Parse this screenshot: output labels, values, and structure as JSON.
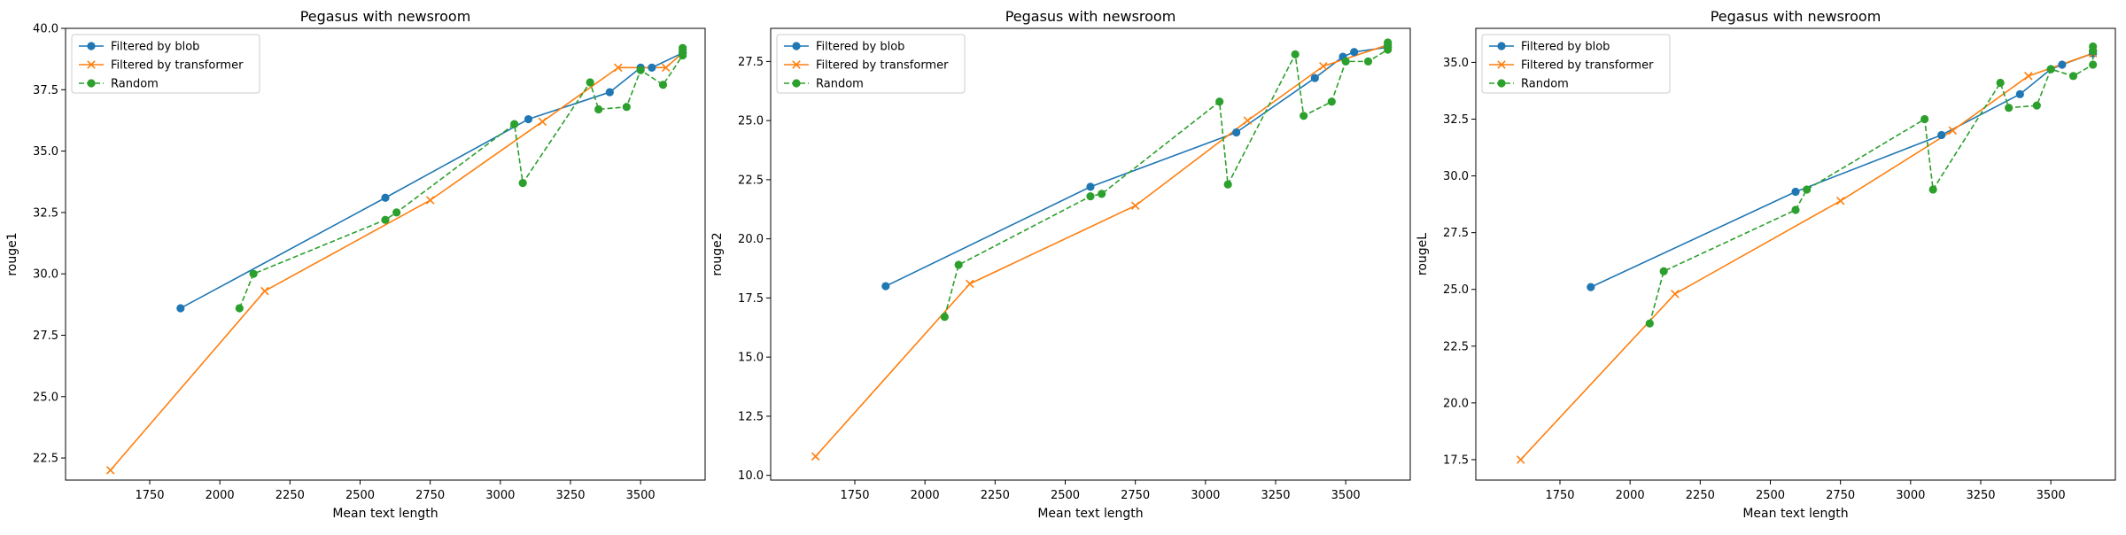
{
  "chart_data": [
    {
      "type": "line",
      "title": "Pegasus with newsroom",
      "xlabel": "Mean text length",
      "ylabel": "rouge1",
      "xlim": [
        1450,
        3730
      ],
      "ylim": [
        21.6,
        40.0
      ],
      "xticks": [
        1750,
        2000,
        2250,
        2500,
        2750,
        3000,
        3250,
        3500
      ],
      "yticks": [
        22.5,
        25.0,
        27.5,
        30.0,
        32.5,
        35.0,
        37.5,
        40.0
      ],
      "legend_position": "upper-left",
      "series": [
        {
          "name": "Filtered by blob",
          "color": "#1f77b4",
          "marker": "circle",
          "linestyle": "solid",
          "x": [
            1860,
            2590,
            3100,
            3390,
            3500,
            3540,
            3650,
            3650
          ],
          "y": [
            28.6,
            33.1,
            36.3,
            37.4,
            38.4,
            38.4,
            39.0,
            39.0
          ]
        },
        {
          "name": "Filtered by transformer",
          "color": "#ff7f0e",
          "marker": "x",
          "linestyle": "solid",
          "x": [
            1610,
            2160,
            2750,
            3150,
            3420,
            3590,
            3650
          ],
          "y": [
            22.0,
            29.3,
            33.0,
            36.2,
            38.4,
            38.4,
            39.0
          ]
        },
        {
          "name": "Random",
          "color": "#2ca02c",
          "marker": "circle",
          "linestyle": "dashed",
          "x": [
            2070,
            2120,
            2590,
            2630,
            3050,
            3080,
            3320,
            3350,
            3450,
            3500,
            3580,
            3650,
            3650,
            3650
          ],
          "y": [
            28.6,
            30.0,
            32.2,
            32.5,
            36.1,
            33.7,
            37.8,
            36.7,
            36.8,
            38.3,
            37.7,
            38.9,
            39.1,
            39.2
          ]
        }
      ]
    },
    {
      "type": "line",
      "title": "Pegasus with newsroom",
      "xlabel": "Mean text length",
      "ylabel": "rouge2",
      "xlim": [
        1450,
        3730
      ],
      "ylim": [
        9.8,
        28.9
      ],
      "xticks": [
        1750,
        2000,
        2250,
        2500,
        2750,
        3000,
        3250,
        3500
      ],
      "yticks": [
        10.0,
        12.5,
        15.0,
        17.5,
        20.0,
        22.5,
        25.0,
        27.5
      ],
      "legend_position": "upper-left",
      "series": [
        {
          "name": "Filtered by blob",
          "color": "#1f77b4",
          "marker": "circle",
          "linestyle": "solid",
          "x": [
            1860,
            2590,
            3110,
            3390,
            3490,
            3530,
            3650,
            3650
          ],
          "y": [
            18.0,
            22.2,
            24.5,
            26.8,
            27.7,
            27.9,
            28.1,
            28.2
          ]
        },
        {
          "name": "Filtered by transformer",
          "color": "#ff7f0e",
          "marker": "x",
          "linestyle": "solid",
          "x": [
            1610,
            2160,
            2750,
            3150,
            3420,
            3650
          ],
          "y": [
            10.8,
            18.1,
            21.4,
            25.0,
            27.3,
            28.2
          ]
        },
        {
          "name": "Random",
          "color": "#2ca02c",
          "marker": "circle",
          "linestyle": "dashed",
          "x": [
            2070,
            2120,
            2590,
            2630,
            3050,
            3080,
            3320,
            3350,
            3450,
            3500,
            3580,
            3650,
            3650,
            3650
          ],
          "y": [
            16.7,
            18.9,
            21.8,
            21.9,
            25.8,
            22.3,
            27.8,
            25.2,
            25.8,
            27.5,
            27.5,
            28.0,
            28.1,
            28.3
          ]
        }
      ]
    },
    {
      "type": "line",
      "title": "Pegasus with newsroom",
      "xlabel": "Mean text length",
      "ylabel": "rougeL",
      "xlim": [
        1450,
        3730
      ],
      "ylim": [
        16.6,
        36.5
      ],
      "xticks": [
        1750,
        2000,
        2250,
        2500,
        2750,
        3000,
        3250,
        3500
      ],
      "yticks": [
        17.5,
        20.0,
        22.5,
        25.0,
        27.5,
        30.0,
        32.5,
        35.0
      ],
      "legend_position": "upper-left",
      "series": [
        {
          "name": "Filtered by blob",
          "color": "#1f77b4",
          "marker": "circle",
          "linestyle": "solid",
          "x": [
            1860,
            2590,
            3110,
            3390,
            3500,
            3540,
            3650,
            3650
          ],
          "y": [
            25.1,
            29.3,
            31.8,
            33.6,
            34.7,
            34.9,
            35.4,
            35.5
          ]
        },
        {
          "name": "Filtered by transformer",
          "color": "#ff7f0e",
          "marker": "x",
          "linestyle": "solid",
          "x": [
            1610,
            2160,
            2750,
            3150,
            3420,
            3650
          ],
          "y": [
            17.5,
            24.8,
            28.9,
            32.0,
            34.4,
            35.4
          ]
        },
        {
          "name": "Random",
          "color": "#2ca02c",
          "marker": "circle",
          "linestyle": "dashed",
          "x": [
            2070,
            2120,
            2590,
            2630,
            3050,
            3080,
            3320,
            3350,
            3450,
            3500,
            3580,
            3650,
            3650,
            3650
          ],
          "y": [
            23.5,
            25.8,
            28.5,
            29.4,
            32.5,
            29.4,
            34.1,
            33.0,
            33.1,
            34.7,
            34.4,
            34.9,
            35.5,
            35.7
          ]
        }
      ]
    }
  ]
}
